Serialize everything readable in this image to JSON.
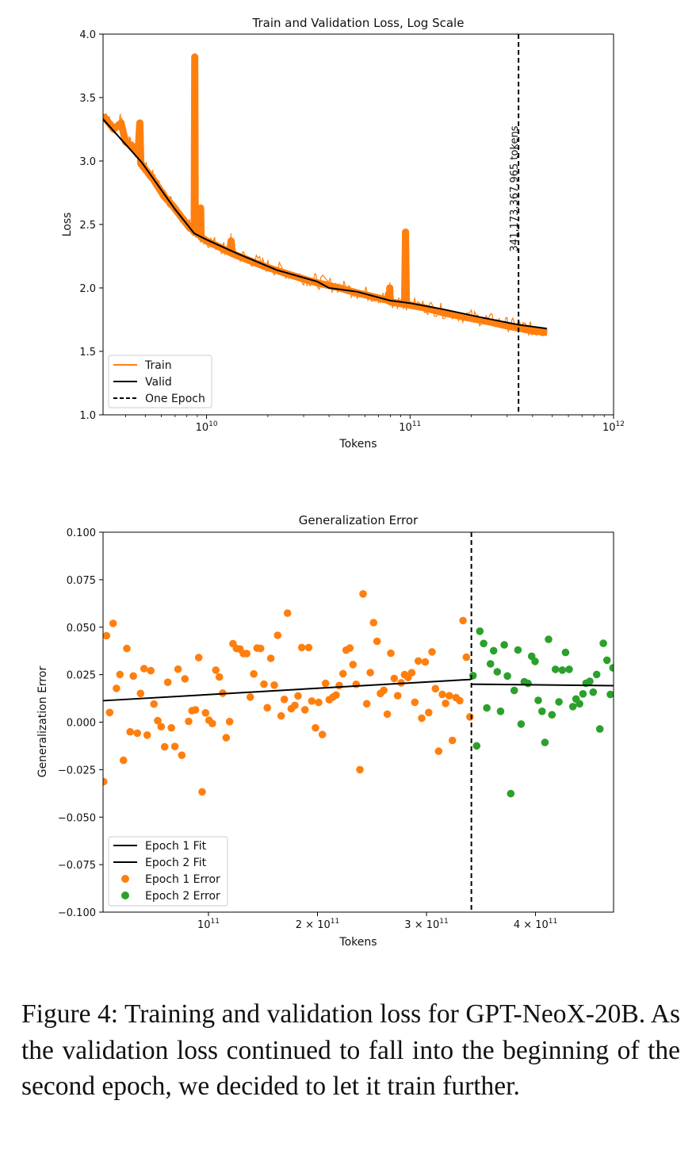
{
  "colors": {
    "train": "#ff7f0e",
    "valid": "#000000",
    "epoch1_error": "#ff7f0e",
    "epoch2_error": "#2ca02c",
    "fit": "#000000"
  },
  "chart_data": [
    {
      "type": "line",
      "title": "Train and Validation Loss, Log Scale",
      "xlabel": "Tokens",
      "ylabel": "Loss",
      "xscale": "log",
      "xlim": [
        3100000000.0,
        1000000000000.0
      ],
      "ylim": [
        1.0,
        4.0
      ],
      "grid": false,
      "legend_position": "lower-left",
      "x_ticks": [
        {
          "value": 10000000000.0,
          "base": "10",
          "exp": "10"
        },
        {
          "value": 100000000000.0,
          "base": "10",
          "exp": "11"
        },
        {
          "value": 1000000000000.0,
          "base": "10",
          "exp": "12"
        }
      ],
      "y_ticks": [
        {
          "value": 1.0,
          "label": "1.0"
        },
        {
          "value": 1.5,
          "label": "1.5"
        },
        {
          "value": 2.0,
          "label": "2.0"
        },
        {
          "value": 2.5,
          "label": "2.5"
        },
        {
          "value": 3.0,
          "label": "3.0"
        },
        {
          "value": 3.5,
          "label": "3.5"
        },
        {
          "value": 4.0,
          "label": "4.0"
        }
      ],
      "series": [
        {
          "name": "Train",
          "style": "solid",
          "points": [
            [
              3100000000.0,
              3.36
            ],
            [
              3500000000.0,
              3.25
            ],
            [
              3800000000.0,
              3.3
            ],
            [
              4000000000.0,
              3.15
            ],
            [
              4300000000.0,
              3.12
            ],
            [
              4600000000.0,
              3.05
            ],
            [
              4700000000.0,
              3.3
            ],
            [
              4750000000.0,
              2.98
            ],
            [
              5500000000.0,
              2.85
            ],
            [
              6200000000.0,
              2.72
            ],
            [
              6800000000.0,
              2.65
            ],
            [
              7500000000.0,
              2.56
            ],
            [
              8300000000.0,
              2.47
            ],
            [
              8700000000.0,
              2.45
            ],
            [
              8750000000.0,
              3.82
            ],
            [
              8800000000.0,
              2.44
            ],
            [
              9300000000.0,
              2.41
            ],
            [
              9350000000.0,
              2.63
            ],
            [
              9400000000.0,
              2.4
            ],
            [
              10000000000.0,
              2.37
            ],
            [
              12000000000.0,
              2.31
            ],
            [
              13000000000.0,
              2.28
            ],
            [
              13200000000.0,
              2.37
            ],
            [
              13400000000.0,
              2.27
            ],
            [
              16000000000.0,
              2.22
            ],
            [
              20000000000.0,
              2.16
            ],
            [
              25000000000.0,
              2.11
            ],
            [
              30000000000.0,
              2.07
            ],
            [
              35000000000.0,
              2.04
            ],
            [
              45000000000.0,
              2.0
            ],
            [
              55000000000.0,
              1.96
            ],
            [
              70000000000.0,
              1.92
            ],
            [
              79000000000.0,
              1.9
            ],
            [
              79500000000.0,
              2.0
            ],
            [
              80000000000.0,
              1.89
            ],
            [
              94000000000.0,
              1.87
            ],
            [
              95000000000.0,
              2.44
            ],
            [
              96000000000.0,
              1.87
            ],
            [
              120000000000.0,
              1.84
            ],
            [
              150000000000.0,
              1.8
            ],
            [
              200000000000.0,
              1.76
            ],
            [
              250000000000.0,
              1.73
            ],
            [
              300000000000.0,
              1.7
            ],
            [
              350000000000.0,
              1.68
            ],
            [
              400000000000.0,
              1.66
            ],
            [
              472000000000.0,
              1.65
            ]
          ]
        },
        {
          "name": "Valid",
          "style": "solid",
          "points": [
            [
              3100000000.0,
              3.33
            ],
            [
              4800000000.0,
              2.99
            ],
            [
              7000000000.0,
              2.62
            ],
            [
              8700000000.0,
              2.43
            ],
            [
              10000000000.0,
              2.38
            ],
            [
              14200000000.0,
              2.27
            ],
            [
              22200000000.0,
              2.14
            ],
            [
              35000000000.0,
              2.05
            ],
            [
              40000000000.0,
              2.0
            ],
            [
              55000000000.0,
              1.97
            ],
            [
              80000000000.0,
              1.9
            ],
            [
              100000000000.0,
              1.88
            ],
            [
              147000000000.0,
              1.83
            ],
            [
              220000000000.0,
              1.77
            ],
            [
              340000000000.0,
              1.71
            ],
            [
              470000000000.0,
              1.68
            ]
          ]
        }
      ],
      "vline": {
        "name": "One Epoch",
        "x": 341173367965,
        "style": "dashed",
        "annotation": "341,173,367,965 tokens"
      },
      "legend": [
        "Train",
        "Valid",
        "One Epoch"
      ]
    },
    {
      "type": "scatter",
      "title": "Generalization Error",
      "xlabel": "Tokens",
      "ylabel": "Generalization Error",
      "xscale": "linear",
      "xlim": [
        3300000000.0,
        471600000000.0
      ],
      "ylim": [
        -0.1,
        0.1
      ],
      "grid": false,
      "legend_position": "lower-left",
      "x_ticks": [
        {
          "value": 100000000000.0,
          "base": "10",
          "exp": "11"
        },
        {
          "value": 200000000000.0,
          "base": "2 × 10",
          "exp": "11"
        },
        {
          "value": 300000000000.0,
          "base": "3 × 10",
          "exp": "11"
        },
        {
          "value": 400000000000.0,
          "base": "4 × 10",
          "exp": "11"
        }
      ],
      "y_ticks": [
        {
          "value": 0.1,
          "label": "0.100"
        },
        {
          "value": 0.075,
          "label": "0.075"
        },
        {
          "value": 0.05,
          "label": "0.050"
        },
        {
          "value": 0.025,
          "label": "0.025"
        },
        {
          "value": 0.0,
          "label": "0.000"
        },
        {
          "value": -0.025,
          "label": "−0.025"
        },
        {
          "value": -0.05,
          "label": "−0.050"
        },
        {
          "value": -0.075,
          "label": "−0.075"
        },
        {
          "value": -0.1,
          "label": "−0.100"
        }
      ],
      "vline": {
        "x": 341173367965,
        "style": "dashed"
      },
      "fits": [
        {
          "name": "Epoch 1 Fit",
          "points": [
            [
              3300000000.0,
              0.0113
            ],
            [
              340700000000.0,
              0.0225
            ]
          ]
        },
        {
          "name": "Epoch 2 Fit",
          "points": [
            [
              340700000000.0,
              0.02
            ],
            [
              471600000000.0,
              0.0192
            ]
          ]
        }
      ],
      "x_unit": 100000000000.0,
      "series": [
        {
          "name": "Epoch 1 Error",
          "points": [
            [
              0.064,
              0.0455
            ],
            [
              0.125,
              0.052
            ],
            [
              0.251,
              0.0388
            ],
            [
              0.188,
              0.0251
            ],
            [
              0.156,
              0.0178
            ],
            [
              0.093,
              0.0051
            ],
            [
              0.311,
              0.0243
            ],
            [
              0.409,
              0.0282
            ],
            [
              0.471,
              0.0271
            ],
            [
              0.377,
              0.0151
            ],
            [
              0.5,
              0.0095
            ],
            [
              0.282,
              -0.0051
            ],
            [
              0.348,
              -0.0058
            ],
            [
              0.438,
              -0.0068
            ],
            [
              0.535,
              0.0008
            ],
            [
              0.566,
              -0.0024
            ],
            [
              0.66,
              -0.003
            ],
            [
              0.598,
              -0.013
            ],
            [
              0.692,
              -0.0128
            ],
            [
              0.755,
              -0.0174
            ],
            [
              0.22,
              -0.0201
            ],
            [
              0.038,
              -0.0313
            ],
            [
              0.942,
              -0.0367
            ],
            [
              0.627,
              0.021
            ],
            [
              0.721,
              0.0279
            ],
            [
              0.784,
              0.0228
            ],
            [
              0.911,
              0.034
            ],
            [
              0.818,
              0.0004
            ],
            [
              0.849,
              0.006
            ],
            [
              0.881,
              0.0065
            ],
            [
              0.973,
              0.0049
            ],
            [
              1.005,
              0.001
            ],
            [
              1.036,
              -0.0007
            ],
            [
              1.068,
              0.0274
            ],
            [
              1.1,
              0.0238
            ],
            [
              1.131,
              0.0153
            ],
            [
              1.162,
              -0.0082
            ],
            [
              1.194,
              0.0003
            ],
            [
              1.225,
              0.0413
            ],
            [
              1.257,
              0.0388
            ],
            [
              1.289,
              0.0385
            ],
            [
              1.32,
              0.0361
            ],
            [
              1.351,
              0.0361
            ],
            [
              1.383,
              0.0132
            ],
            [
              1.415,
              0.0254
            ],
            [
              1.446,
              0.039
            ],
            [
              1.478,
              0.0388
            ],
            [
              1.509,
              0.02
            ],
            [
              1.54,
              0.0076
            ],
            [
              1.572,
              0.0336
            ],
            [
              1.604,
              0.0195
            ],
            [
              1.635,
              0.0457
            ],
            [
              1.667,
              0.0033
            ],
            [
              1.696,
              0.012
            ],
            [
              1.725,
              0.0574
            ],
            [
              1.759,
              0.0071
            ],
            [
              1.793,
              0.0088
            ],
            [
              1.822,
              0.0138
            ],
            [
              1.885,
              0.0065
            ],
            [
              1.948,
              0.0111
            ],
            [
              2.011,
              0.0104
            ],
            [
              1.856,
              0.0393
            ],
            [
              1.919,
              0.0393
            ],
            [
              1.982,
              -0.003
            ],
            [
              2.045,
              -0.0065
            ],
            [
              2.074,
              0.0204
            ],
            [
              2.108,
              0.0118
            ],
            [
              2.142,
              0.0132
            ],
            [
              2.171,
              0.0143
            ],
            [
              2.2,
              0.0193
            ],
            [
              2.234,
              0.0255
            ],
            [
              2.263,
              0.0379
            ],
            [
              2.297,
              0.039
            ],
            [
              2.326,
              0.0303
            ],
            [
              2.355,
              0.0199
            ],
            [
              2.389,
              -0.025
            ],
            [
              2.418,
              0.0675
            ],
            [
              2.452,
              0.0097
            ],
            [
              2.484,
              0.0261
            ],
            [
              2.515,
              0.0524
            ],
            [
              2.547,
              0.0426
            ],
            [
              2.578,
              0.0151
            ],
            [
              2.609,
              0.0168
            ],
            [
              2.641,
              0.0042
            ],
            [
              2.673,
              0.0363
            ],
            [
              2.704,
              0.023
            ],
            [
              2.736,
              0.0139
            ],
            [
              2.767,
              0.0207
            ],
            [
              2.799,
              0.025
            ],
            [
              2.831,
              0.0235
            ],
            [
              2.864,
              0.026
            ],
            [
              2.893,
              0.0105
            ],
            [
              2.925,
              0.0322
            ],
            [
              2.956,
              0.0021
            ],
            [
              2.988,
              0.0317
            ],
            [
              3.02,
              0.0051
            ],
            [
              3.051,
              0.037
            ],
            [
              3.082,
              0.0176
            ],
            [
              3.111,
              -0.0153
            ],
            [
              3.145,
              0.0146
            ],
            [
              3.175,
              0.0099
            ],
            [
              3.209,
              0.0139
            ],
            [
              3.238,
              -0.0096
            ],
            [
              3.271,
              0.0129
            ],
            [
              3.305,
              0.0113
            ],
            [
              3.335,
              0.0535
            ],
            [
              3.366,
              0.0342
            ],
            [
              3.398,
              0.0028
            ]
          ]
        },
        {
          "name": "Epoch 2 Error",
          "points": [
            [
              3.427,
              0.0245
            ],
            [
              3.489,
              0.0479
            ],
            [
              3.524,
              0.0414
            ],
            [
              3.616,
              0.0376
            ],
            [
              3.587,
              0.0307
            ],
            [
              3.649,
              0.0265
            ],
            [
              3.713,
              0.0407
            ],
            [
              3.742,
              0.0243
            ],
            [
              3.805,
              0.0167
            ],
            [
              3.839,
              0.038
            ],
            [
              3.897,
              0.0213
            ],
            [
              3.931,
              0.0204
            ],
            [
              3.965,
              0.0347
            ],
            [
              3.996,
              0.032
            ],
            [
              4.025,
              0.0115
            ],
            [
              4.06,
              0.0057
            ],
            [
              4.12,
              0.0436
            ],
            [
              4.183,
              0.0278
            ],
            [
              4.246,
              0.0274
            ],
            [
              4.309,
              0.0278
            ],
            [
              4.275,
              0.0367
            ],
            [
              4.215,
              0.0107
            ],
            [
              4.151,
              0.0039
            ],
            [
              4.086,
              -0.0107
            ],
            [
              3.868,
              -0.001
            ],
            [
              3.679,
              0.0057
            ],
            [
              3.553,
              0.0075
            ],
            [
              3.46,
              -0.0125
            ],
            [
              3.773,
              -0.0376
            ],
            [
              4.343,
              0.0082
            ],
            [
              4.372,
              0.0122
            ],
            [
              4.404,
              0.0097
            ],
            [
              4.435,
              0.0149
            ],
            [
              4.464,
              0.0205
            ],
            [
              4.498,
              0.0215
            ],
            [
              4.529,
              0.0158
            ],
            [
              4.561,
              0.0251
            ],
            [
              4.59,
              -0.0036
            ],
            [
              4.622,
              0.0415
            ],
            [
              4.656,
              0.0326
            ],
            [
              4.687,
              0.0146
            ],
            [
              4.711,
              0.0286
            ]
          ]
        }
      ],
      "legend": [
        "Epoch 1 Fit",
        "Epoch 2 Fit",
        "Epoch 1 Error",
        "Epoch 2 Error"
      ]
    }
  ],
  "caption": "Figure 4: Training and validation loss for GPT-NeoX-20B. As the validation loss continued to fall into the beginning of the second epoch, we decided to let it train further."
}
